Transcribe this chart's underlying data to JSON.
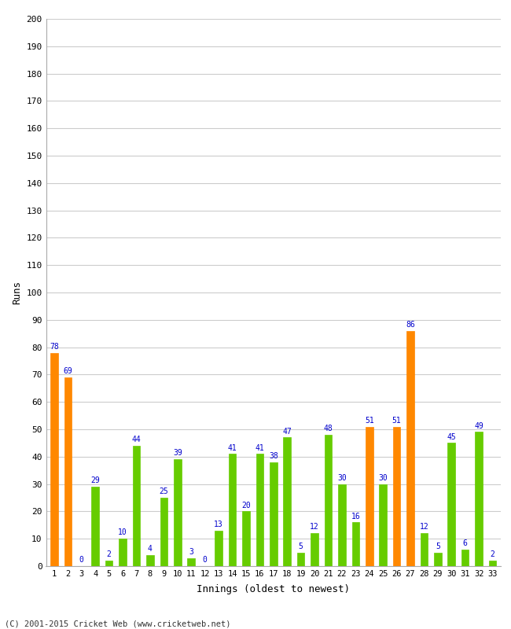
{
  "xlabel": "Innings (oldest to newest)",
  "ylabel": "Runs",
  "categories": [
    1,
    2,
    3,
    4,
    5,
    6,
    7,
    8,
    9,
    10,
    11,
    12,
    13,
    14,
    15,
    16,
    17,
    18,
    19,
    20,
    21,
    22,
    23,
    24,
    25,
    26,
    27,
    28,
    29,
    30,
    31,
    32,
    33
  ],
  "values": [
    78,
    69,
    0,
    29,
    2,
    10,
    44,
    4,
    25,
    39,
    3,
    0,
    13,
    41,
    20,
    41,
    38,
    47,
    5,
    12,
    48,
    30,
    16,
    51,
    30,
    51,
    86,
    12,
    5,
    45,
    6,
    49,
    2
  ],
  "colors": [
    "#ff8800",
    "#ff8800",
    "#66cc00",
    "#66cc00",
    "#66cc00",
    "#66cc00",
    "#66cc00",
    "#66cc00",
    "#66cc00",
    "#66cc00",
    "#66cc00",
    "#66cc00",
    "#66cc00",
    "#66cc00",
    "#66cc00",
    "#66cc00",
    "#66cc00",
    "#66cc00",
    "#66cc00",
    "#66cc00",
    "#66cc00",
    "#66cc00",
    "#66cc00",
    "#ff8800",
    "#66cc00",
    "#ff8800",
    "#ff8800",
    "#66cc00",
    "#66cc00",
    "#66cc00",
    "#66cc00",
    "#66cc00",
    "#66cc00"
  ],
  "ylim": [
    0,
    200
  ],
  "yticks": [
    0,
    10,
    20,
    30,
    40,
    50,
    60,
    70,
    80,
    90,
    100,
    110,
    120,
    130,
    140,
    150,
    160,
    170,
    180,
    190,
    200
  ],
  "background_color": "#ffffff",
  "grid_color": "#cccccc",
  "label_color": "#0000cc",
  "footer": "(C) 2001-2015 Cricket Web (www.cricketweb.net)"
}
